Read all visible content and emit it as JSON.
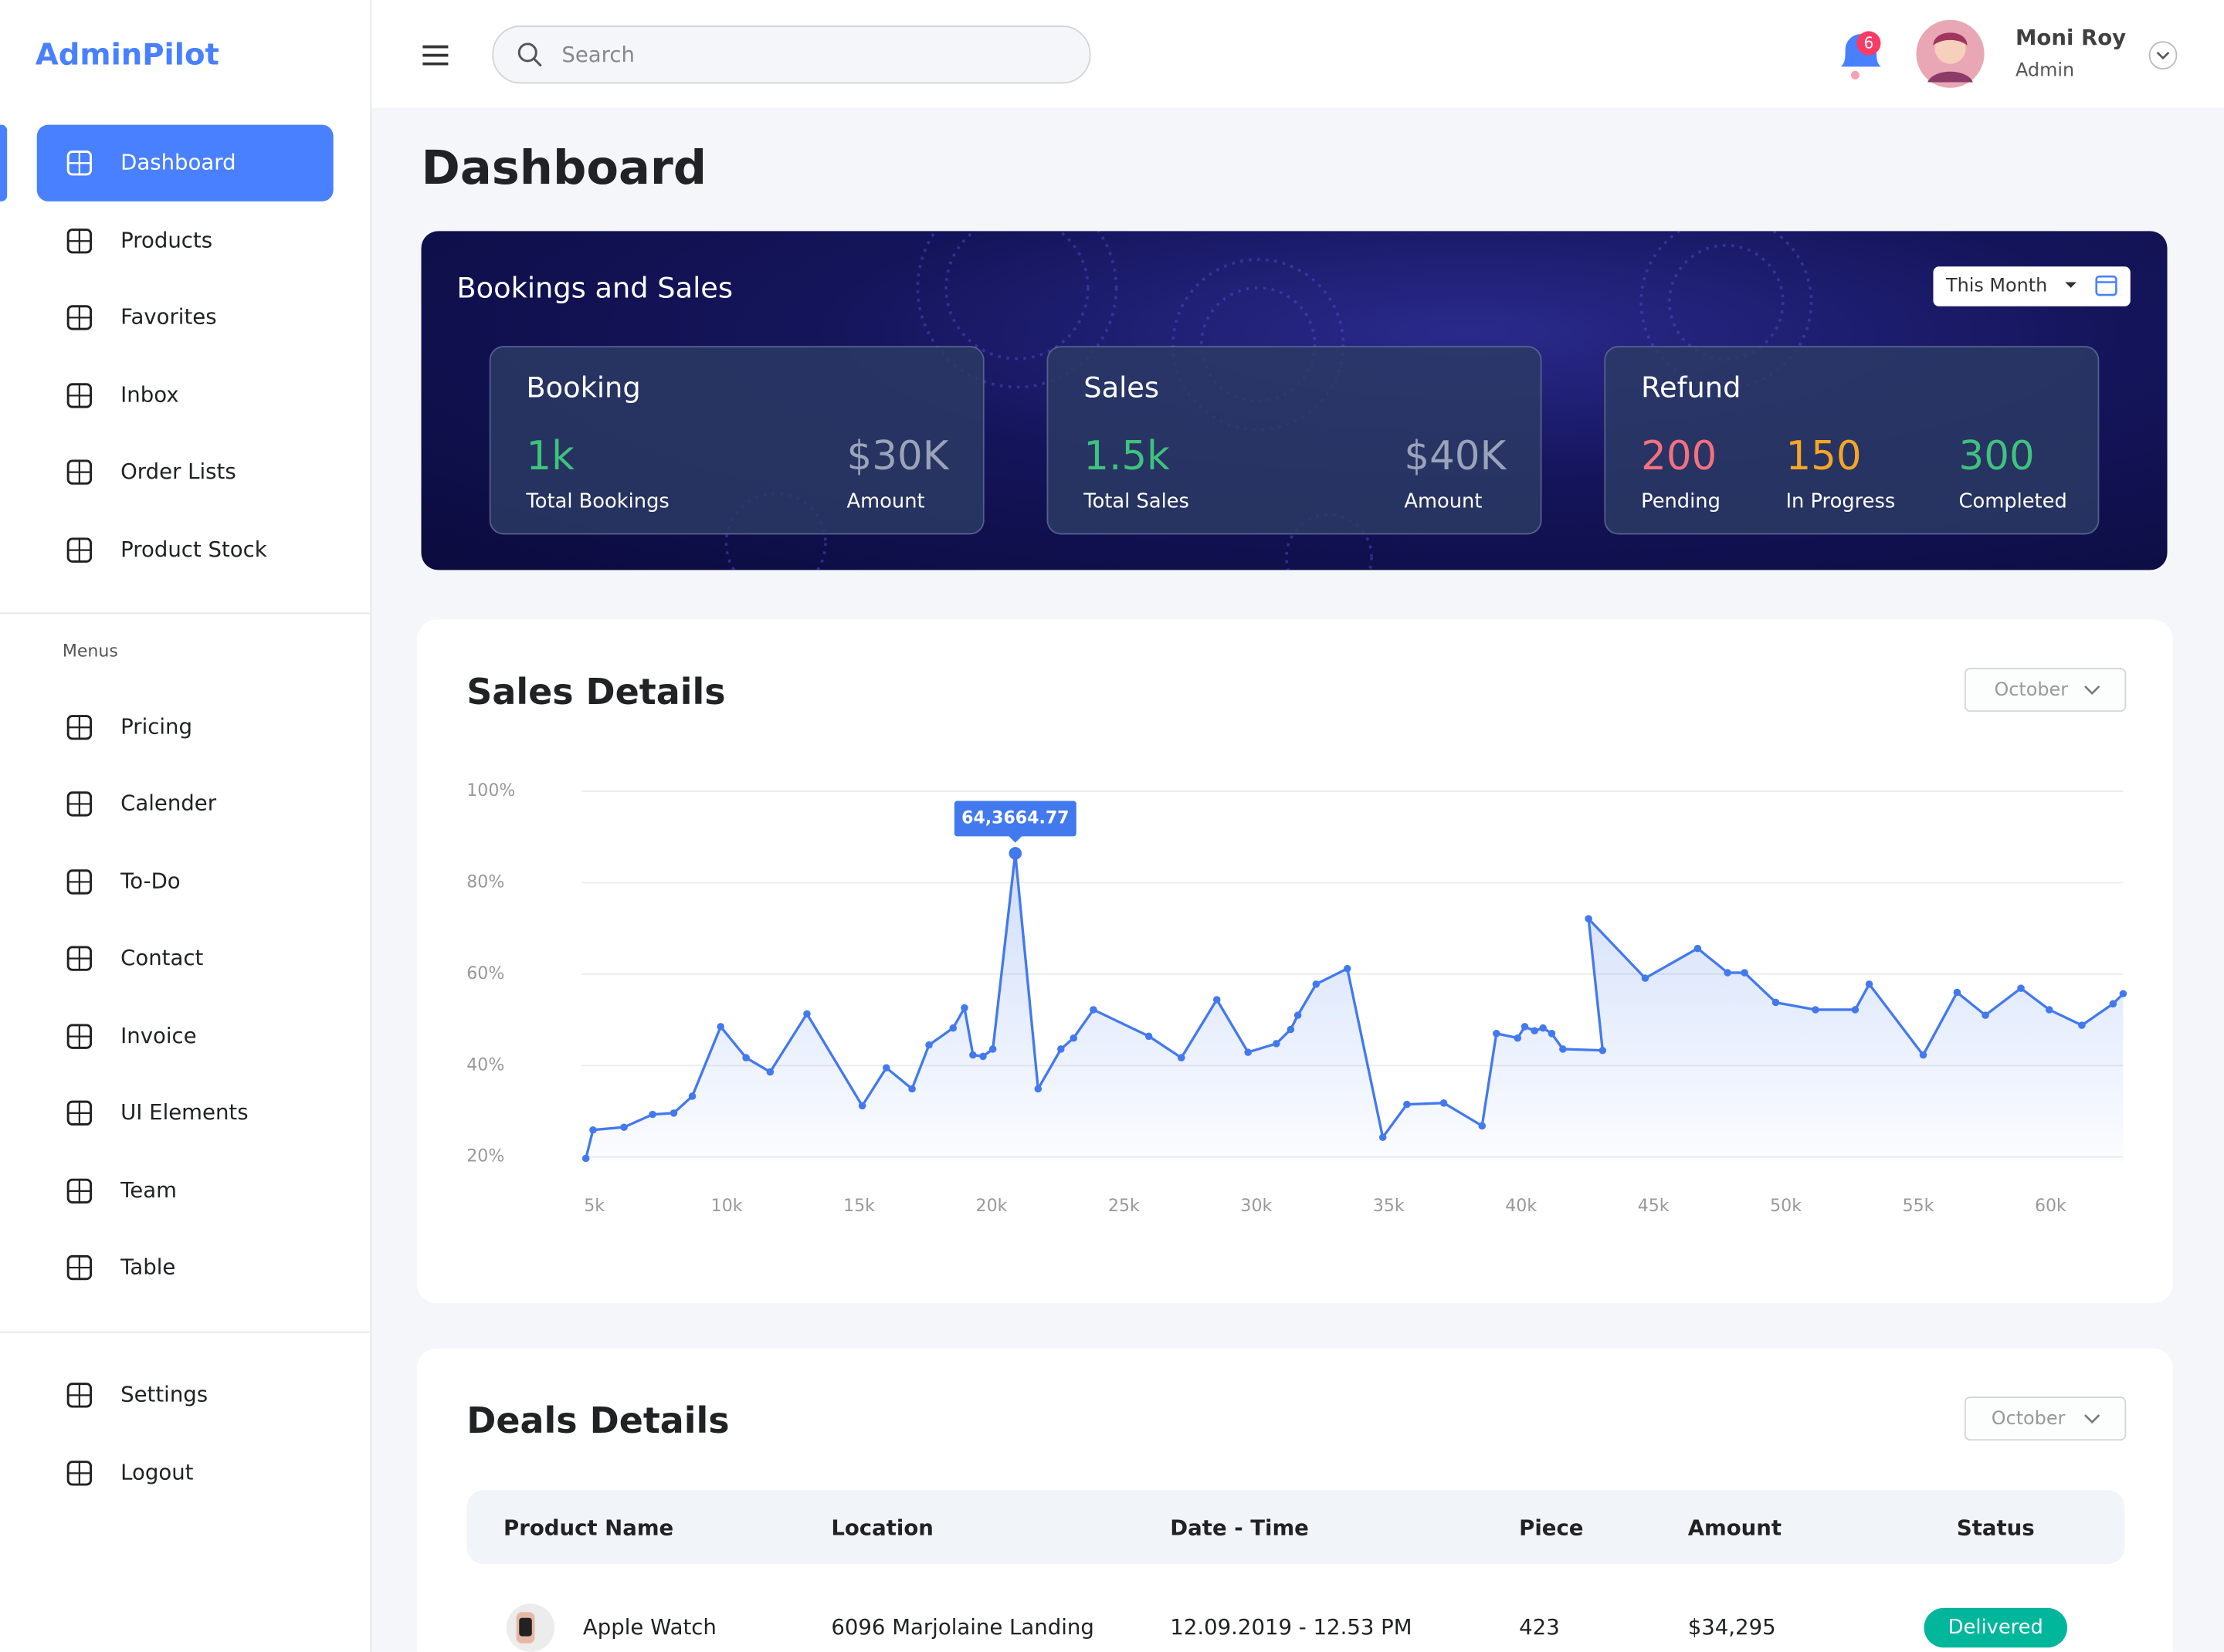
{
  "brand": "AdminPilot",
  "search_placeholder": "Search",
  "notifications": 6,
  "user": {
    "name": "Moni Roy",
    "role": "Admin"
  },
  "nav": {
    "main": [
      "Dashboard",
      "Products",
      "Favorites",
      "Inbox",
      "Order Lists",
      "Product Stock"
    ],
    "section_label": "Menus",
    "menus": [
      "Pricing",
      "Calender",
      "To-Do",
      "Contact",
      "Invoice",
      "UI Elements",
      "Team",
      "Table"
    ],
    "footer": [
      "Settings",
      "Logout"
    ]
  },
  "page_title": "Dashboard",
  "bookings": {
    "title": "Bookings and Sales",
    "period": "This Month",
    "cards": [
      {
        "title": "Booking",
        "stats": [
          {
            "value": "1k",
            "label": "Total Bookings",
            "color": "#3ec27e"
          },
          {
            "value": "$30K",
            "label": "Amount",
            "color": "#9aa3b8"
          }
        ]
      },
      {
        "title": "Sales",
        "stats": [
          {
            "value": "1.5k",
            "label": "Total Sales",
            "color": "#3ec27e"
          },
          {
            "value": "$40K",
            "label": "Amount",
            "color": "#9aa3b8"
          }
        ]
      },
      {
        "title": "Refund",
        "stats": [
          {
            "value": "200",
            "label": "Pending",
            "color": "#f4707f"
          },
          {
            "value": "150",
            "label": "In Progress",
            "color": "#f5a623"
          },
          {
            "value": "300",
            "label": "Completed",
            "color": "#3ec27e"
          }
        ]
      }
    ]
  },
  "chart_data": {
    "type": "line",
    "title": "Sales Details",
    "filter": "October",
    "annotation": "64,3664.77",
    "color": "#4379ee",
    "grid": true,
    "x": [
      4.68,
      4.95,
      6.12,
      7.2,
      8.0,
      8.7,
      9.77,
      10.73,
      11.64,
      13.03,
      15.12,
      16.03,
      17.0,
      17.64,
      18.55,
      18.98,
      19.3,
      19.68,
      20.05,
      20.9,
      21.76,
      22.62,
      23.1,
      23.85,
      25.94,
      27.17,
      28.51,
      29.69,
      30.76,
      31.3,
      31.57,
      32.26,
      33.44,
      34.78,
      35.69,
      37.08,
      38.53,
      39.07,
      39.87,
      40.14,
      40.51,
      40.83,
      41.16,
      41.58,
      43.08,
      42.55,
      44.69,
      46.67,
      47.8,
      48.44,
      49.62,
      51.12,
      52.62,
      53.15,
      55.19,
      56.47,
      57.54,
      58.88,
      59.95,
      61.18,
      62.36,
      62.74
    ],
    "values": [
      19.7,
      25.9,
      26.5,
      29.3,
      29.6,
      33.3,
      48.5,
      41.7,
      38.6,
      51.3,
      31.2,
      39.5,
      34.9,
      44.5,
      48.2,
      52.6,
      42.3,
      42.0,
      43.6,
      86.4,
      34.9,
      43.6,
      46.0,
      52.2,
      46.4,
      41.7,
      54.4,
      42.9,
      44.8,
      47.9,
      51.0,
      57.8,
      61.2,
      24.3,
      31.5,
      31.8,
      26.8,
      47.0,
      46.0,
      48.5,
      47.6,
      48.2,
      47.0,
      43.6,
      43.3,
      72.1,
      59.1,
      65.6,
      60.3,
      60.3,
      53.8,
      52.2,
      52.2,
      57.8,
      42.3,
      56.0,
      51.0,
      56.9,
      52.2,
      48.8,
      53.5,
      55.7
    ],
    "xlim": [
      4.5,
      62.8
    ],
    "ylim": [
      19,
      100
    ],
    "xticks": [
      {
        "value": 5,
        "label": "5k"
      },
      {
        "value": 10,
        "label": "10k"
      },
      {
        "value": 15,
        "label": "15k"
      },
      {
        "value": 20,
        "label": "20k"
      },
      {
        "value": 25,
        "label": "25k"
      },
      {
        "value": 30,
        "label": "30k"
      },
      {
        "value": 35,
        "label": "35k"
      },
      {
        "value": 40,
        "label": "40k"
      },
      {
        "value": 45,
        "label": "45k"
      },
      {
        "value": 50,
        "label": "50k"
      },
      {
        "value": 55,
        "label": "55k"
      },
      {
        "value": 60,
        "label": "60k"
      }
    ],
    "yticks": [
      {
        "value": 20,
        "label": "20%"
      },
      {
        "value": 40,
        "label": "40%"
      },
      {
        "value": 60,
        "label": "60%"
      },
      {
        "value": 80,
        "label": "80%"
      },
      {
        "value": 100,
        "label": "100%"
      }
    ]
  },
  "deals": {
    "title": "Deals Details",
    "filter": "October",
    "table": {
      "columns": [
        "Product Name",
        "Location",
        "Date - Time",
        "Piece",
        "Amount",
        "Status"
      ],
      "rows": [
        [
          "Apple Watch",
          "6096 Marjolaine Landing",
          "12.09.2019 - 12.53 PM",
          423,
          "$34,295",
          "Delivered"
        ]
      ]
    }
  }
}
